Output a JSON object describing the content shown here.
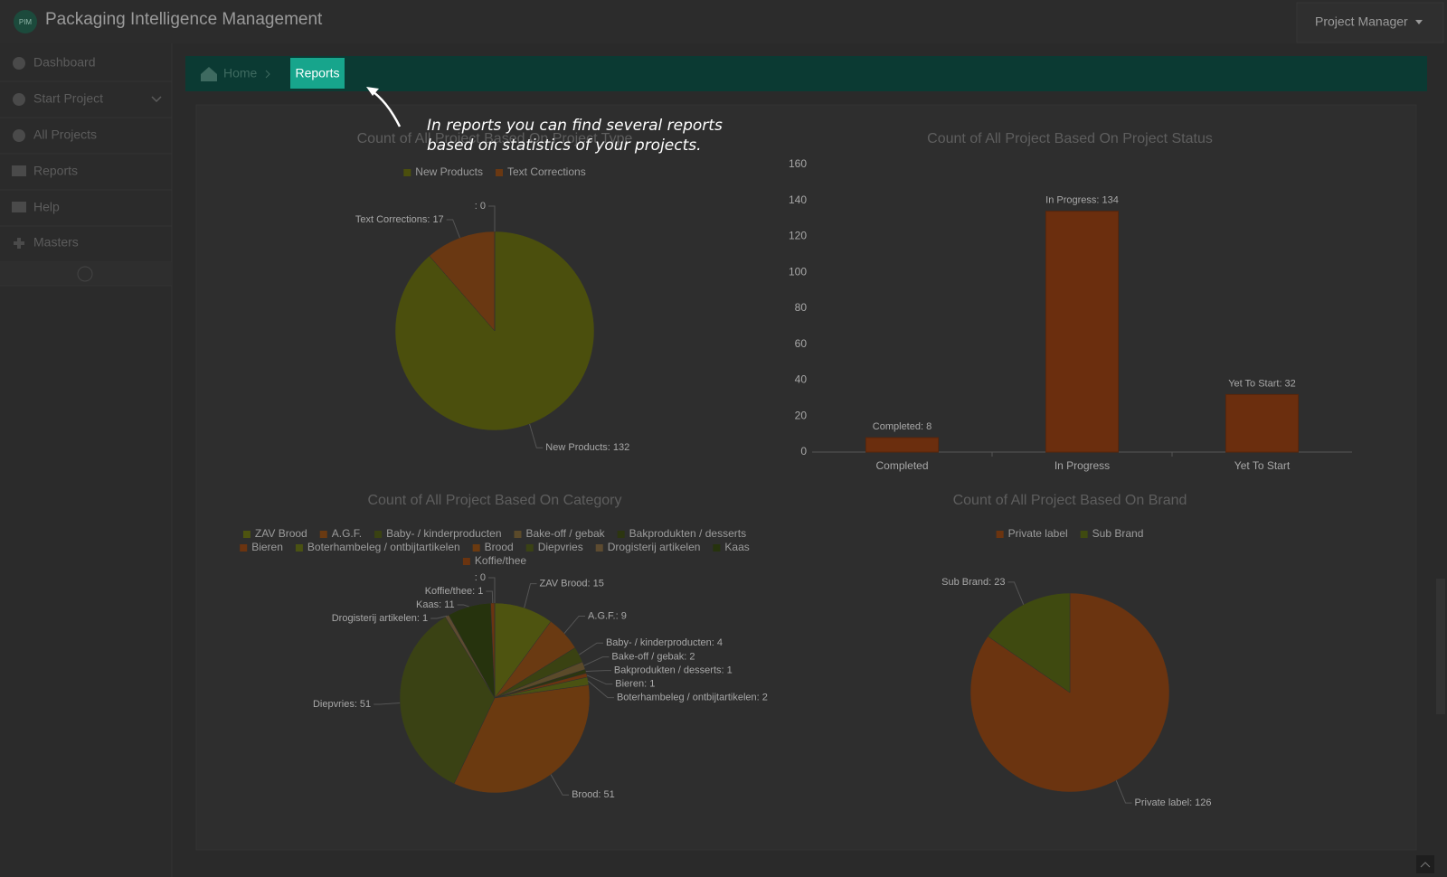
{
  "header": {
    "logo": "PIM",
    "title": "Packaging Intelligence Management",
    "user": "Project Manager"
  },
  "sidebar": {
    "items": [
      "Dashboard",
      "Start Project",
      "All Projects",
      "Reports",
      "Help",
      "Masters"
    ]
  },
  "breadcrumb": {
    "home": "Home",
    "current": "Reports"
  },
  "tour": {
    "text": "In reports you can find several reports based on statistics of your projects."
  },
  "charts": [
    {
      "type": "pie",
      "title": "Count of All Project Based On Project Type",
      "legend": true,
      "categories": [
        "New Products",
        "Text Corrections",
        null
      ],
      "values": [
        132,
        17,
        0
      ],
      "value_labels": [
        "New Products: 132",
        "Text Corrections: 17",
        ": 0"
      ],
      "colors": [
        "#4b4f0d",
        "#6a3812",
        "#4b4f0d"
      ]
    },
    {
      "type": "bar",
      "title": "Count of All Project Based On Project Status",
      "legend": false,
      "categories": [
        "Completed",
        "In Progress",
        "Yet To Start"
      ],
      "values": [
        8,
        134,
        32
      ],
      "value_labels": [
        "Completed: 8",
        "In Progress: 134",
        "Yet To Start: 32"
      ],
      "color": "#6b2e0e",
      "ylim": [
        0,
        160
      ],
      "yticks": [
        0,
        20,
        40,
        60,
        80,
        100,
        120,
        140,
        160
      ],
      "grid": false
    },
    {
      "type": "pie",
      "title": "Count of All Project Based On Category",
      "legend": true,
      "categories": [
        "ZAV Brood",
        "A.G.F.",
        "Baby- / kinderproducten",
        "Bake-off / gebak",
        "Bakprodukten / desserts",
        "Bieren",
        "Boterhambeleg / ontbijtartikelen",
        "Brood",
        "Diepvries",
        "Drogisterij artikelen",
        "Kaas",
        "Koffie/thee",
        null
      ],
      "values": [
        15,
        9,
        4,
        2,
        1,
        1,
        2,
        51,
        51,
        1,
        11,
        1,
        0
      ],
      "value_labels": [
        "ZAV Brood: 15",
        "A.G.F.: 9",
        "Baby- / kinderproducten: 4",
        "Bake-off / gebak: 2",
        "Bakprodukten / desserts: 1",
        "Bieren: 1",
        "Boterhambeleg / ontbijtartikelen: 2",
        "Brood: 51",
        "Diepvries: 51",
        "Drogisterij artikelen: 1",
        "Kaas: 11",
        "Koffie/thee: 1",
        ": 0"
      ],
      "colors": [
        "#4e5410",
        "#6a3a12",
        "#3a4212",
        "#5b4a2a",
        "#2c3510",
        "#6b3410",
        "#4a5212",
        "#6b3a10",
        "#3a4214",
        "#5d4b30",
        "#26330d",
        "#6a3410",
        "#4e5410"
      ]
    },
    {
      "type": "pie",
      "title": "Count of All Project Based On Brand",
      "legend": true,
      "categories": [
        "Private label",
        "Sub Brand"
      ],
      "values": [
        126,
        23
      ],
      "value_labels": [
        "Private label: 126",
        "Sub Brand: 23"
      ],
      "colors": [
        "#6b3410",
        "#3f4a10"
      ]
    }
  ]
}
